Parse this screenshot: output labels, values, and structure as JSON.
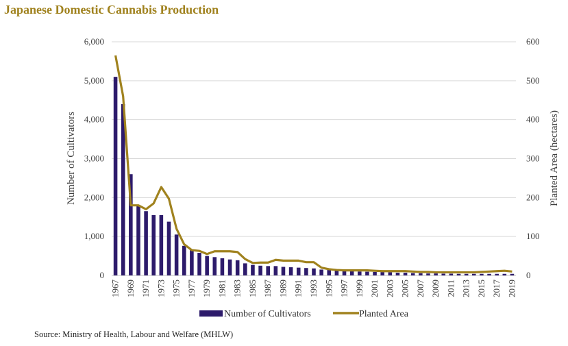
{
  "title": "Japanese Domestic Cannabis Production",
  "source": "Source: Ministry of Health, Labour and Welfare (MHLW)",
  "colors": {
    "title": "#A0821E",
    "bars": "#2D1B6B",
    "line": "#A0821E",
    "grid": "#D9D9D9"
  },
  "chart_data": {
    "type": "bar",
    "x": [
      1967,
      1968,
      1969,
      1970,
      1971,
      1972,
      1973,
      1974,
      1975,
      1976,
      1977,
      1978,
      1979,
      1980,
      1981,
      1982,
      1983,
      1984,
      1985,
      1986,
      1987,
      1988,
      1989,
      1990,
      1991,
      1992,
      1993,
      1994,
      1995,
      1996,
      1997,
      1998,
      1999,
      2000,
      2001,
      2002,
      2003,
      2004,
      2005,
      2006,
      2007,
      2008,
      2009,
      2010,
      2011,
      2012,
      2013,
      2014,
      2015,
      2016,
      2017,
      2018,
      2019
    ],
    "x_tick_labels": [
      "1967",
      "1969",
      "1971",
      "1973",
      "1975",
      "1977",
      "1979",
      "1981",
      "1983",
      "1985",
      "1987",
      "1989",
      "1991",
      "1993",
      "1995",
      "1997",
      "1999",
      "2001",
      "2003",
      "2005",
      "2007",
      "2009",
      "2011",
      "2013",
      "2015",
      "2017",
      "2019"
    ],
    "ylabel": "Number of Cultivators",
    "y2label": "Planted Area (hectares)",
    "ylim": [
      0,
      6000
    ],
    "y2lim": [
      0,
      600
    ],
    "y_ticks": [
      "0",
      "1,000",
      "2,000",
      "3,000",
      "4,000",
      "5,000",
      "6,000"
    ],
    "y2_ticks": [
      "0",
      "100",
      "200",
      "300",
      "400",
      "500",
      "600"
    ],
    "series": [
      {
        "name": "Number of Cultivators",
        "type": "bar",
        "axis": "left",
        "values": [
          5100,
          4400,
          2600,
          1800,
          1650,
          1550,
          1550,
          1380,
          1050,
          760,
          650,
          580,
          500,
          470,
          440,
          410,
          390,
          310,
          270,
          250,
          240,
          240,
          220,
          210,
          200,
          190,
          180,
          150,
          140,
          130,
          120,
          110,
          100,
          95,
          90,
          85,
          80,
          70,
          70,
          60,
          55,
          50,
          50,
          45,
          45,
          40,
          40,
          40,
          40,
          40,
          40,
          40,
          40
        ]
      },
      {
        "name": "Planted Area",
        "type": "line",
        "axis": "right",
        "values": [
          565,
          460,
          180,
          180,
          170,
          185,
          227,
          197,
          120,
          80,
          65,
          63,
          55,
          62,
          62,
          62,
          60,
          42,
          32,
          33,
          33,
          40,
          38,
          38,
          38,
          34,
          34,
          20,
          16,
          14,
          13,
          13,
          13,
          13,
          12,
          11,
          11,
          11,
          11,
          10,
          9,
          9,
          8,
          8,
          8,
          8,
          8,
          8,
          9,
          10,
          11,
          12,
          10
        ]
      }
    ],
    "grid": "horizontal",
    "legend": "bottom"
  }
}
